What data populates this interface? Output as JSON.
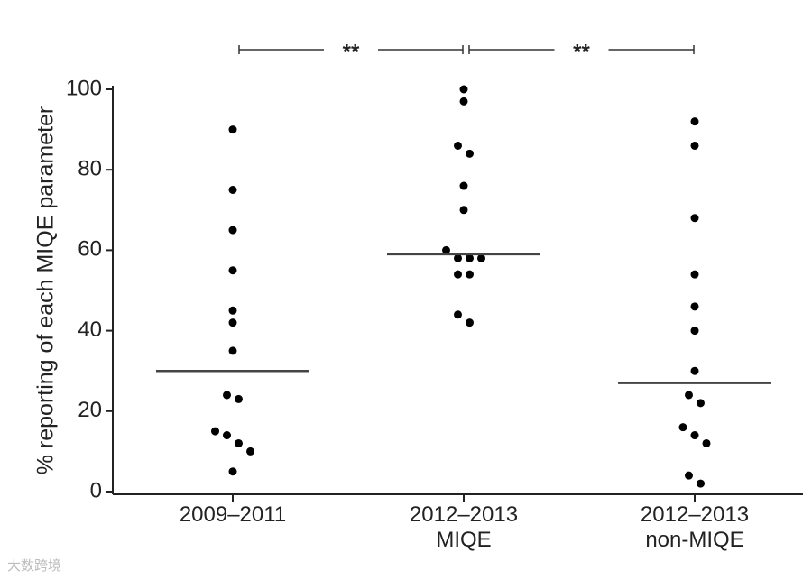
{
  "chart_data": {
    "type": "strip",
    "ylabel": "% reporting of each MIQE parameter",
    "categories": [
      [
        "2009–2011"
      ],
      [
        "2012–2013",
        "MIQE"
      ],
      [
        "2012–2013",
        "non-MIQE"
      ]
    ],
    "values": [
      [
        90,
        75,
        65,
        55,
        45,
        42,
        35,
        24,
        23,
        15,
        14,
        12,
        10,
        5
      ],
      [
        100,
        97,
        86,
        84,
        76,
        70,
        60,
        58,
        58,
        58,
        54,
        54,
        44,
        42
      ],
      [
        92,
        86,
        68,
        54,
        46,
        40,
        30,
        24,
        22,
        16,
        14,
        12,
        4,
        2
      ]
    ],
    "medians": [
      30,
      59,
      27
    ],
    "color": "#000000",
    "median_color": "#444444",
    "annotations": [
      "**",
      "**"
    ],
    "ylim": [
      0,
      100
    ],
    "yticks": [
      0,
      20,
      40,
      60,
      80,
      100
    ],
    "watermark": "大数跨境"
  }
}
